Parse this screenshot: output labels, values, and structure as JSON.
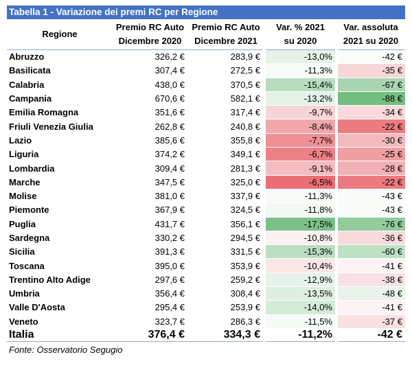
{
  "title": "Tabella 1 - Variazione dei premi RC per Regione",
  "headers": {
    "region": "Regione",
    "col1_line1": "Premio RC Auto",
    "col1_line2": "Dicembre 2020",
    "col2_line1": "Premio RC Auto",
    "col2_line2": "Dicembre 2021",
    "col3_line1": "Var. % 2021",
    "col3_line2": "su 2020",
    "col4_line1": "Var. assoluta",
    "col4_line2": "2021 su 2020"
  },
  "rows": [
    {
      "region": "Abruzzo",
      "p2020": "326,2 €",
      "p2021": "283,9 €",
      "var_pct": "-13,0%",
      "var_abs": "-42 €",
      "pct_color": "#e6f2e8",
      "abs_color": "#fbfdfb"
    },
    {
      "region": "Basilicata",
      "p2020": "307,4 €",
      "p2021": "272,5 €",
      "var_pct": "-11,3%",
      "var_abs": "-35 €",
      "pct_color": "#f7fbf8",
      "abs_color": "#f7d6d8"
    },
    {
      "region": "Calabria",
      "p2020": "438,0 €",
      "p2021": "370,5 €",
      "var_pct": "-15,4%",
      "var_abs": "-67 €",
      "pct_color": "#b8dcbf",
      "abs_color": "#aad5b3"
    },
    {
      "region": "Campania",
      "p2020": "670,6 €",
      "p2021": "582,1 €",
      "var_pct": "-13,2%",
      "var_abs": "-88 €",
      "pct_color": "#e3f1e6",
      "abs_color": "#74bd81"
    },
    {
      "region": "Emilia Romagna",
      "p2020": "351,6 €",
      "p2021": "317,4 €",
      "var_pct": "-9,7%",
      "var_abs": "-34 €",
      "pct_color": "#f7d4d6",
      "abs_color": "#f8dadc"
    },
    {
      "region": "Friuli Venezia Giulia",
      "p2020": "262,8 €",
      "p2021": "240,8 €",
      "var_pct": "-8,4%",
      "var_abs": "-22 €",
      "pct_color": "#f1a6aa",
      "abs_color": "#ec7b80"
    },
    {
      "region": "Lazio",
      "p2020": "385,6 €",
      "p2021": "355,8 €",
      "var_pct": "-7,7%",
      "var_abs": "-30 €",
      "pct_color": "#ee9095",
      "abs_color": "#f3babd"
    },
    {
      "region": "Liguria",
      "p2020": "374,2 €",
      "p2021": "349,1 €",
      "var_pct": "-6,7%",
      "var_abs": "-25 €",
      "pct_color": "#ec8287",
      "abs_color": "#ef9ea2"
    },
    {
      "region": "Lombardia",
      "p2020": "309,4 €",
      "p2021": "281,3 €",
      "var_pct": "-9,1%",
      "var_abs": "-28 €",
      "pct_color": "#f4bcc0",
      "abs_color": "#f2b0b4"
    },
    {
      "region": "Marche",
      "p2020": "347,5 €",
      "p2021": "325,0 €",
      "var_pct": "-6,5%",
      "var_abs": "-22 €",
      "pct_color": "#ea6f75",
      "abs_color": "#ec7b80"
    },
    {
      "region": "Molise",
      "p2020": "381,0 €",
      "p2021": "337,9 €",
      "var_pct": "-11,3%",
      "var_abs": "-43 €",
      "pct_color": "#f7fbf8",
      "abs_color": "#f8fcf9"
    },
    {
      "region": "Piemonte",
      "p2020": "367,9 €",
      "p2021": "324,5 €",
      "var_pct": "-11,8%",
      "var_abs": "-43 €",
      "pct_color": "#f2f9f3",
      "abs_color": "#f8fcf9"
    },
    {
      "region": "Puglia",
      "p2020": "431,7 €",
      "p2021": "356,1 €",
      "var_pct": "-17,5%",
      "var_abs": "-76 €",
      "pct_color": "#7dc18a",
      "abs_color": "#93cb9d"
    },
    {
      "region": "Sardegna",
      "p2020": "330,2 €",
      "p2021": "294,5 €",
      "var_pct": "-10,8%",
      "var_abs": "-36 €",
      "pct_color": "#fcf1f2",
      "abs_color": "#f8dadc"
    },
    {
      "region": "Sicilia",
      "p2020": "391,3 €",
      "p2021": "331,5 €",
      "var_pct": "-15,3%",
      "var_abs": "-60 €",
      "pct_color": "#bbddc2",
      "abs_color": "#bee0c5"
    },
    {
      "region": "Toscana",
      "p2020": "395,0 €",
      "p2021": "353,9 €",
      "var_pct": "-10,4%",
      "var_abs": "-41 €",
      "pct_color": "#fae6e7",
      "abs_color": "#fcf3f4"
    },
    {
      "region": "Trentino Alto Adige",
      "p2020": "297,6 €",
      "p2021": "259,2 €",
      "var_pct": "-12,9%",
      "var_abs": "-38 €",
      "pct_color": "#e7f3e9",
      "abs_color": "#f8e2e3"
    },
    {
      "region": "Umbria",
      "p2020": "356,4 €",
      "p2021": "308,4 €",
      "var_pct": "-13,5%",
      "var_abs": "-48 €",
      "pct_color": "#deefe2",
      "abs_color": "#e8f4ea"
    },
    {
      "region": "Valle D'Aosta",
      "p2020": "295,4 €",
      "p2021": "253,9 €",
      "var_pct": "-14,0%",
      "var_abs": "-41 €",
      "pct_color": "#d5ebd9",
      "abs_color": "#fcf3f4"
    },
    {
      "region": "Veneto",
      "p2020": "323,7 €",
      "p2021": "286,3 €",
      "var_pct": "-11,5%",
      "var_abs": "-37 €",
      "pct_color": "#f5faf6",
      "abs_color": "#f9e0e1"
    }
  ],
  "total": {
    "region": "Italia",
    "p2020": "376,4 €",
    "p2021": "334,3 €",
    "var_pct": "-11,2%",
    "var_abs": "-42 €"
  },
  "source": "Fonte: Osservatorio Segugio",
  "colors": {
    "title_bg": "#4472c4",
    "title_text": "#ffffff",
    "rule": "#8ea9db"
  }
}
